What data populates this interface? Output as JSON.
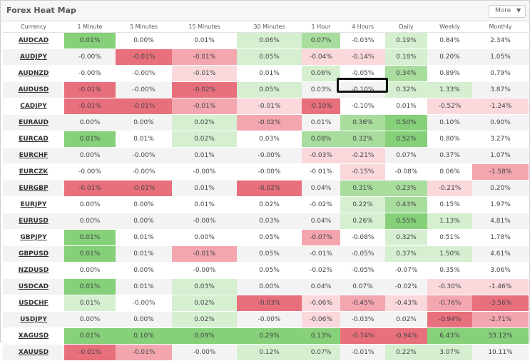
{
  "widget": {
    "title": "Forex Heat Map",
    "more_label": "More",
    "more_icon": "chevron-down-icon"
  },
  "columns": [
    "Currency",
    "1 Minute",
    "5 Minutes",
    "15 Minutes",
    "30 Minutes",
    "1 Hour",
    "4 Hours",
    "Daily",
    "Weekly",
    "Monthly"
  ],
  "colors": {
    "strong_green": "#86d07a",
    "medium_green": "#a8dd9e",
    "light_green": "#d5efd0",
    "strong_red": "#e8707c",
    "medium_red": "#f3a6ae",
    "light_red": "#fad8dc",
    "selection_outline": "#111111"
  },
  "rows": [
    {
      "currency": "AUDCAD",
      "values": [
        "0.01%",
        "0.00%",
        "0.01%",
        "0.06%",
        "0.07%",
        "-0.03%",
        "0.19%",
        "0.84%",
        "2.34%"
      ]
    },
    {
      "currency": "AUDJPY",
      "values": [
        "-0.00%",
        "-0.01%",
        "-0.01%",
        "0.05%",
        "-0.04%",
        "-0.14%",
        "0.18%",
        "0.20%",
        "1.05%"
      ]
    },
    {
      "currency": "AUDNZD",
      "values": [
        "-0.00%",
        "-0.00%",
        "-0.01%",
        "0.01%",
        "0.06%",
        "-0.05%",
        "0.34%",
        "0.89%",
        "0.79%"
      ]
    },
    {
      "currency": "AUDUSD",
      "values": [
        "-0.01%",
        "-0.00%",
        "-0.02%",
        "0.05%",
        "0.03%",
        "-0.10%",
        "0.32%",
        "1.33%",
        "3.87%"
      ]
    },
    {
      "currency": "CADJPY",
      "values": [
        "-0.01%",
        "-0.01%",
        "-0.01%",
        "-0.01%",
        "-0.10%",
        "-0.10%",
        "0.01%",
        "-0.52%",
        "-1.24%"
      ]
    },
    {
      "currency": "EURAUD",
      "values": [
        "0.00%",
        "0.00%",
        "0.02%",
        "-0.02%",
        "0.01%",
        "0.36%",
        "0.50%",
        "0.10%",
        "0.90%"
      ]
    },
    {
      "currency": "EURCAD",
      "values": [
        "0.01%",
        "0.01%",
        "0.02%",
        "0.03%",
        "0.08%",
        "0.32%",
        "0.52%",
        "0.80%",
        "3.27%"
      ]
    },
    {
      "currency": "EURCHF",
      "values": [
        "0.00%",
        "-0.00%",
        "0.01%",
        "-0.00%",
        "-0.03%",
        "-0.21%",
        "0.07%",
        "0.37%",
        "1.07%"
      ]
    },
    {
      "currency": "EURCZK",
      "values": [
        "-0.00%",
        "-0.00%",
        "-0.00%",
        "-0.00%",
        "-0.01%",
        "-0.15%",
        "-0.08%",
        "0.06%",
        "-1.58%"
      ]
    },
    {
      "currency": "EURGBP",
      "values": [
        "-0.01%",
        "-0.01%",
        "0.01%",
        "-0.02%",
        "0.04%",
        "0.31%",
        "0.23%",
        "-0.21%",
        "0.20%"
      ]
    },
    {
      "currency": "EURJPY",
      "values": [
        "0.00%",
        "0.00%",
        "0.01%",
        "0.02%",
        "-0.02%",
        "0.22%",
        "0.43%",
        "0.15%",
        "1.97%"
      ]
    },
    {
      "currency": "EURUSD",
      "values": [
        "0.00%",
        "0.00%",
        "-0.00%",
        "0.03%",
        "0.04%",
        "0.26%",
        "0.55%",
        "1.13%",
        "4.81%"
      ]
    },
    {
      "currency": "GBPJPY",
      "values": [
        "0.01%",
        "0.01%",
        "0.00%",
        "0.05%",
        "-0.07%",
        "-0.08%",
        "0.32%",
        "0.51%",
        "1.78%"
      ]
    },
    {
      "currency": "GBPUSD",
      "values": [
        "0.01%",
        "0.01%",
        "-0.01%",
        "0.05%",
        "-0.01%",
        "-0.05%",
        "0.37%",
        "1.50%",
        "4.61%"
      ]
    },
    {
      "currency": "NZDUSD",
      "values": [
        "0.00%",
        "0.00%",
        "-0.00%",
        "0.05%",
        "-0.02%",
        "-0.05%",
        "-0.07%",
        "0.35%",
        "3.06%"
      ]
    },
    {
      "currency": "USDCAD",
      "values": [
        "0.01%",
        "0.01%",
        "0.03%",
        "0.00%",
        "0.04%",
        "0.07%",
        "-0.02%",
        "-0.30%",
        "-1.46%"
      ]
    },
    {
      "currency": "USDCHF",
      "values": [
        "0.01%",
        "-0.00%",
        "0.02%",
        "-0.03%",
        "-0.06%",
        "-0.45%",
        "-0.43%",
        "-0.76%",
        "-3.56%"
      ]
    },
    {
      "currency": "USDJPY",
      "values": [
        "0.00%",
        "0.00%",
        "0.02%",
        "-0.00%",
        "-0.06%",
        "-0.03%",
        "0.02%",
        "-0.94%",
        "-2.71%"
      ]
    },
    {
      "currency": "XAGUSD",
      "values": [
        "0.01%",
        "0.10%",
        "0.09%",
        "0.29%",
        "0.13%",
        "-0.74%",
        "-0.94%",
        "6.43%",
        "33.12%"
      ]
    },
    {
      "currency": "XAUUSD",
      "values": [
        "-0.01%",
        "-0.01%",
        "-0.00%",
        "0.12%",
        "0.07%",
        "-0.01%",
        "0.22%",
        "3.07%",
        "10.11%"
      ]
    }
  ],
  "cell_shades": [
    [
      "sg",
      "",
      "",
      "lg",
      "mg",
      "",
      "lg",
      "",
      ""
    ],
    [
      "",
      "sr",
      "mr",
      "lg",
      "lr",
      "lr",
      "lg",
      "",
      ""
    ],
    [
      "",
      "",
      "lr",
      "",
      "lg",
      "",
      "mg",
      "",
      ""
    ],
    [
      "sr",
      "",
      "sr",
      "lg",
      "",
      "",
      "lg",
      "lg",
      ""
    ],
    [
      "sr",
      "sr",
      "mr",
      "lr",
      "sr",
      "",
      "",
      "lr",
      "lr"
    ],
    [
      "",
      "",
      "lg",
      "mr",
      "",
      "mg",
      "sg",
      "",
      ""
    ],
    [
      "sg",
      "",
      "lg",
      "",
      "mg",
      "mg",
      "sg",
      "",
      ""
    ],
    [
      "",
      "",
      "",
      "",
      "lr",
      "lr",
      "",
      "",
      ""
    ],
    [
      "",
      "",
      "",
      "",
      "",
      "lr",
      "",
      "",
      "mr"
    ],
    [
      "sr",
      "sr",
      "",
      "sr",
      "",
      "mg",
      "mg",
      "lr",
      ""
    ],
    [
      "",
      "",
      "",
      "",
      "",
      "lg",
      "mg",
      "",
      ""
    ],
    [
      "",
      "",
      "",
      "",
      "",
      "lg",
      "sg",
      "lg",
      ""
    ],
    [
      "sg",
      "",
      "",
      "",
      "mr",
      "",
      "lg",
      "",
      ""
    ],
    [
      "sg",
      "",
      "mr",
      "",
      "",
      "",
      "lg",
      "lg",
      ""
    ],
    [
      "",
      "",
      "",
      "",
      "",
      "",
      "",
      "",
      ""
    ],
    [
      "sg",
      "",
      "lg",
      "",
      "",
      "",
      "",
      "lr",
      "lr"
    ],
    [
      "lg",
      "",
      "lg",
      "sr",
      "lr",
      "mr",
      "lr",
      "mr",
      "sr"
    ],
    [
      "",
      "",
      "lg",
      "",
      "lr",
      "",
      "",
      "sr",
      "mr"
    ],
    [
      "sg",
      "sg",
      "sg",
      "sg",
      "sg",
      "sr",
      "sr",
      "sg",
      "sg"
    ],
    [
      "sr",
      "mr",
      "",
      "lg",
      "lg",
      "",
      "lg",
      "lg",
      ""
    ]
  ],
  "selected_cell": {
    "row": "AUDUSD",
    "column": "4 Hours",
    "value": "-0.10%"
  }
}
